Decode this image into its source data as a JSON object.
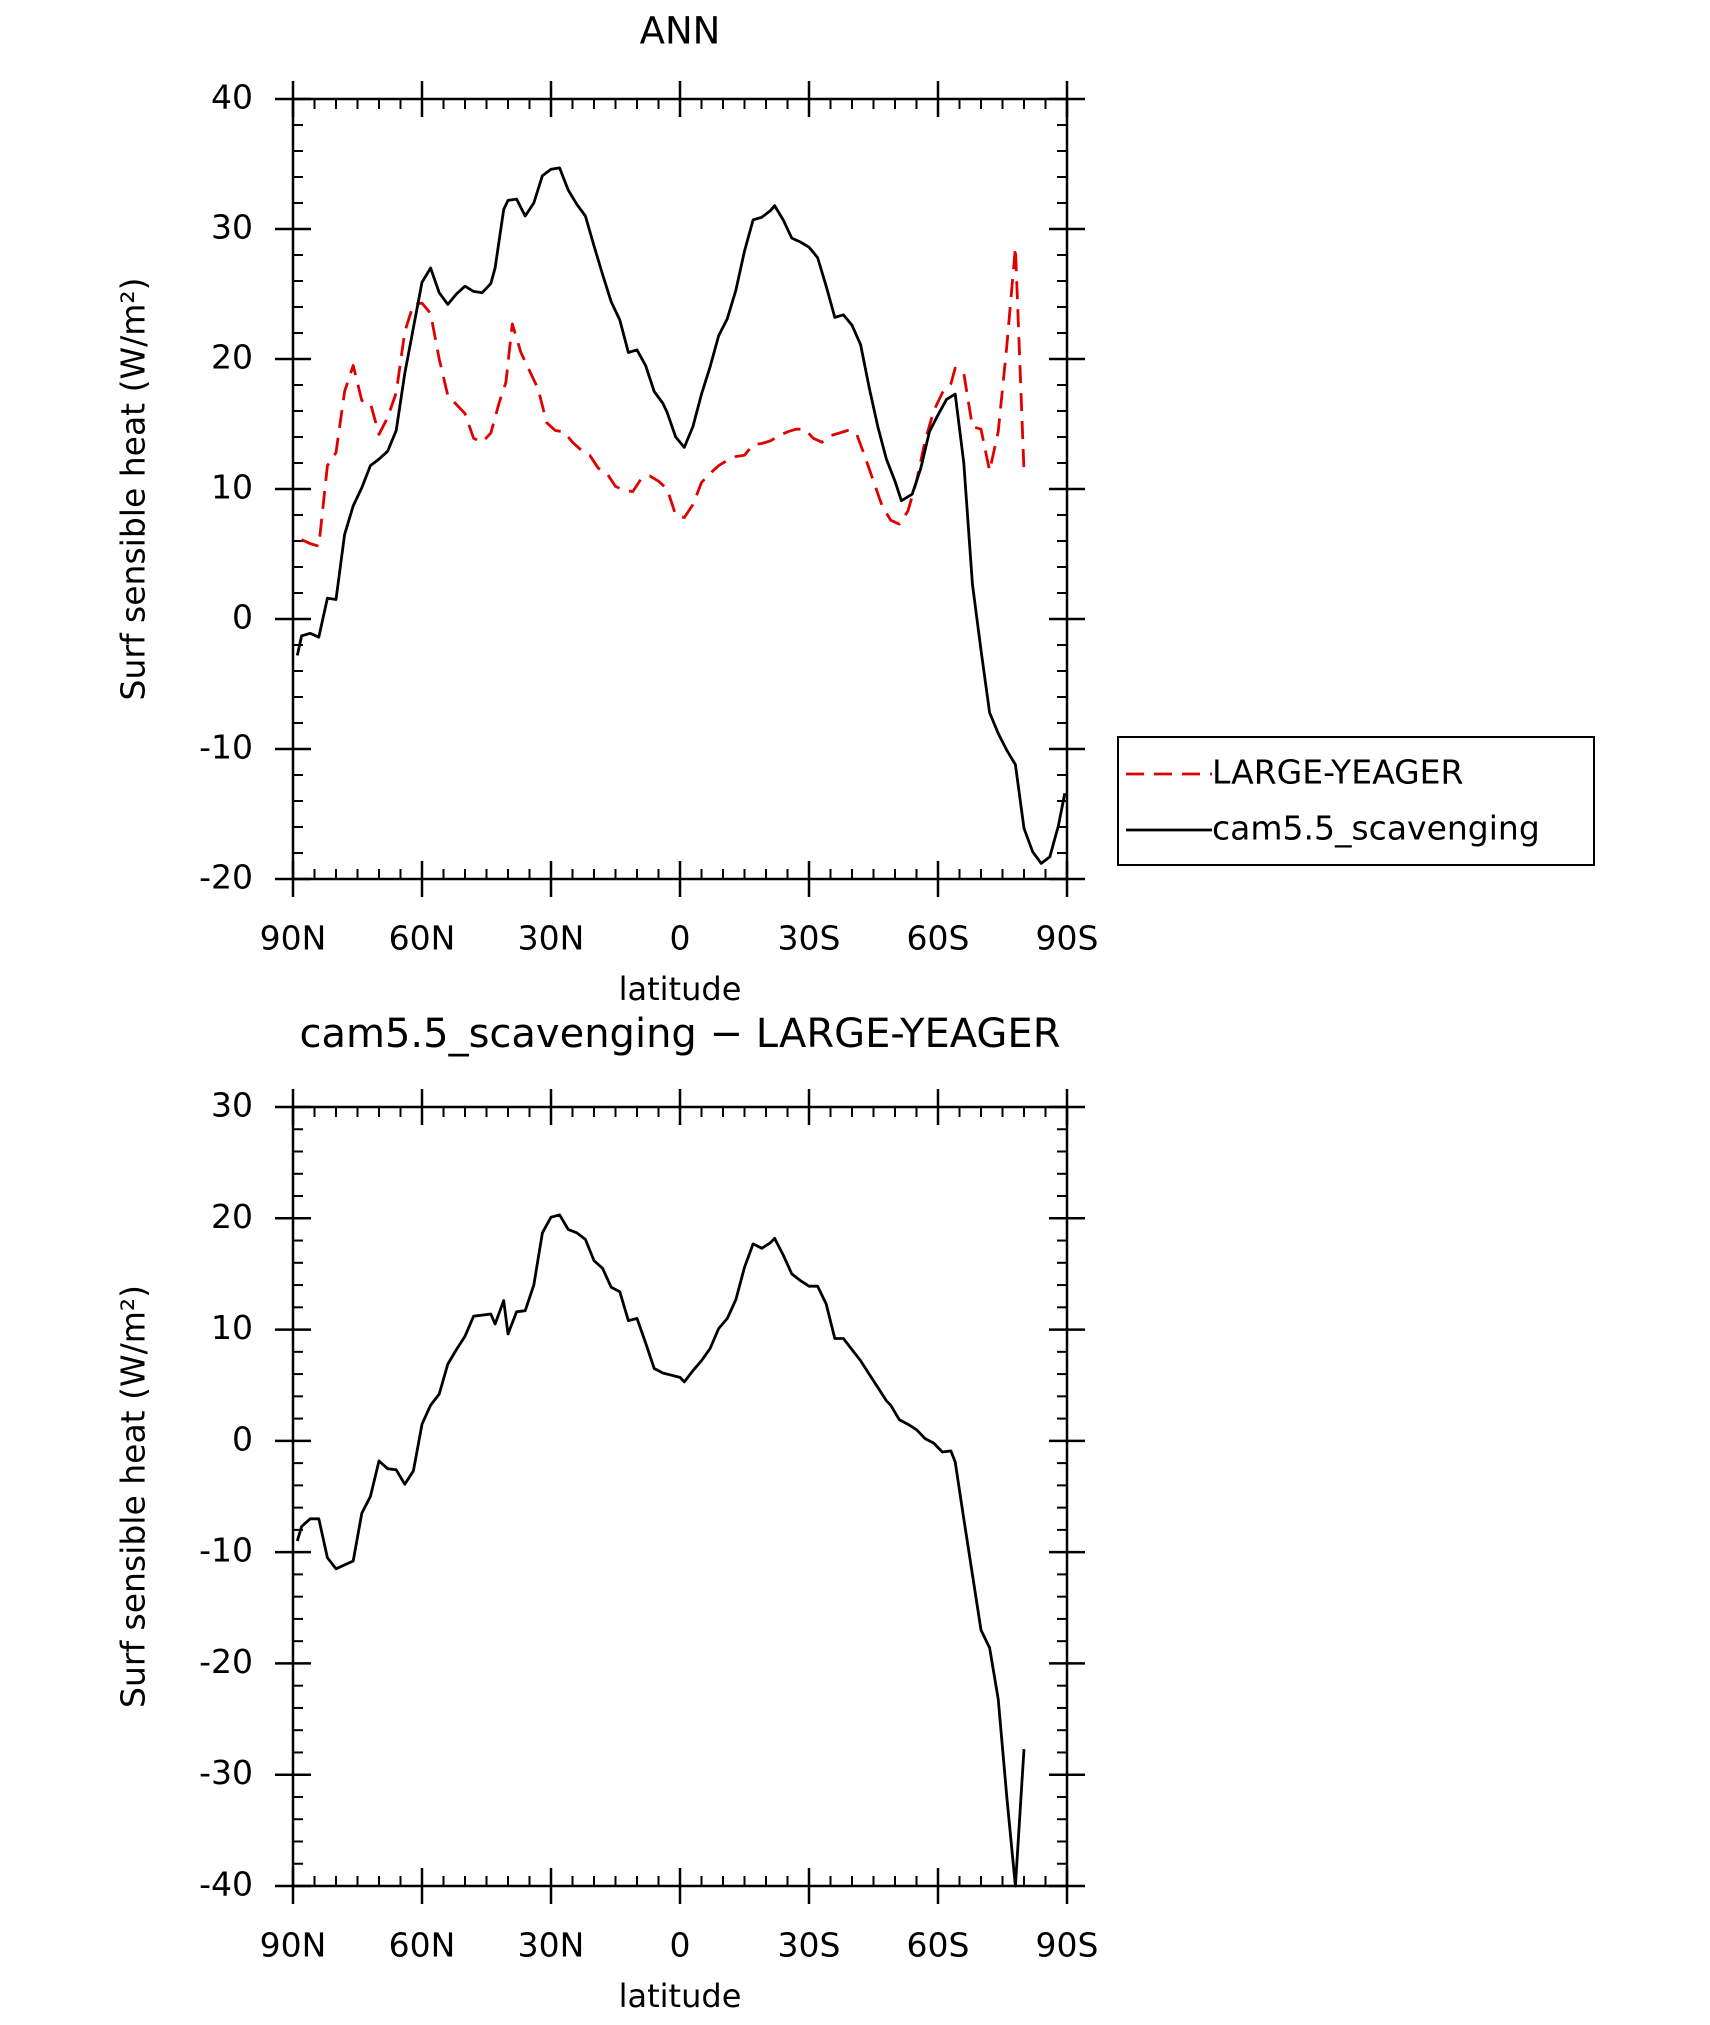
{
  "chart_data": [
    {
      "type": "line",
      "title": "ANN",
      "xlabel": "latitude",
      "ylabel": "Surf sensible heat (W/m²)",
      "xlim": [
        90,
        -90
      ],
      "ylim": [
        -20,
        40
      ],
      "xticks": [
        {
          "value": 90,
          "label": "90N"
        },
        {
          "value": 60,
          "label": "60N"
        },
        {
          "value": 30,
          "label": "30N"
        },
        0,
        {
          "value": -30,
          "label": "30S"
        },
        {
          "value": -60,
          "label": "60S"
        },
        {
          "value": -90,
          "label": "90S"
        }
      ],
      "yticks": [
        -20,
        -10,
        0,
        10,
        20,
        30,
        40
      ],
      "legend": "right",
      "series": [
        {
          "name": "LARGE-YEAGER",
          "color": "#e00000",
          "line_style": "dashed",
          "x": [
            88,
            86,
            84,
            82,
            80,
            78,
            76,
            74,
            72,
            70,
            68,
            66,
            64,
            62,
            60,
            58,
            56,
            54,
            52,
            50,
            48,
            46,
            44,
            42,
            40.5,
            39,
            37,
            35,
            33,
            31,
            29,
            27,
            25,
            23,
            21,
            19,
            17,
            15,
            13,
            11,
            9,
            7,
            5,
            3,
            1,
            -1,
            -3,
            -5,
            -7,
            -9,
            -11,
            -13,
            -15,
            -17,
            -19,
            -21,
            -23,
            -25,
            -27,
            -29,
            -31,
            -33,
            -35,
            -37,
            -39,
            -41,
            -43,
            -45,
            -47,
            -49,
            -51,
            -53,
            -55,
            -57,
            -59,
            -61,
            -63,
            -64,
            -66,
            -68,
            -70,
            -72,
            -74,
            -76,
            -78,
            -80
          ],
          "values": [
            6.1,
            5.8,
            5.6,
            11.8,
            12.8,
            17.5,
            19.5,
            16.8,
            16.6,
            14.2,
            15.5,
            17.4,
            22.1,
            24.2,
            24.3,
            23.5,
            20.0,
            17.2,
            16.5,
            15.8,
            13.9,
            13.6,
            14.3,
            16.7,
            18.2,
            22.7,
            20.5,
            19.1,
            17.7,
            15.1,
            14.5,
            14.4,
            13.6,
            13.0,
            12.6,
            11.6,
            11.2,
            10.2,
            9.9,
            9.8,
            10.8,
            11.0,
            10.6,
            10.0,
            8.0,
            7.8,
            8.8,
            10.5,
            11.2,
            11.8,
            12.2,
            12.5,
            12.6,
            13.4,
            13.5,
            13.7,
            14.1,
            14.4,
            14.6,
            14.6,
            13.9,
            13.6,
            14.1,
            14.3,
            14.5,
            14.3,
            12.5,
            10.6,
            8.7,
            7.6,
            7.3,
            8.3,
            10.6,
            13.7,
            16.0,
            17.4,
            18.1,
            19.3,
            18.9,
            14.8,
            14.6,
            11.4,
            14.4,
            21.0,
            28.6,
            11.4
          ]
        },
        {
          "name": "cam5.5_scavenging",
          "color": "#000000",
          "line_style": "solid",
          "x": [
            89,
            88,
            86,
            84,
            82,
            80,
            78,
            76,
            74,
            72,
            70,
            68,
            66,
            64,
            62,
            60,
            58,
            56,
            54,
            52,
            50,
            48,
            46,
            44,
            43,
            41,
            40,
            38,
            36,
            34,
            32,
            30,
            28,
            26,
            24,
            22,
            20,
            18,
            16,
            14,
            12,
            10,
            8,
            6,
            4,
            3,
            1,
            -1,
            -3,
            -5,
            -7,
            -9,
            -11,
            -13,
            -15,
            -17,
            -19,
            -21,
            -22,
            -24,
            -26,
            -28,
            -30,
            -32,
            -34,
            -36,
            -38,
            -40,
            -42,
            -44,
            -46,
            -48,
            -50,
            -51.5,
            -54,
            -56,
            -58,
            -60,
            -62,
            -64,
            -66,
            -68,
            -70,
            -72,
            -74,
            -76,
            -78,
            -80,
            -82,
            -84,
            -86,
            -88,
            -89.5
          ],
          "values": [
            -2.8,
            -1.3,
            -1.1,
            -1.4,
            1.6,
            1.5,
            6.5,
            8.7,
            10.1,
            11.8,
            12.3,
            12.9,
            14.5,
            18.9,
            22.4,
            25.9,
            27.0,
            25.1,
            24.2,
            25.0,
            25.6,
            25.2,
            25.1,
            25.8,
            27.0,
            31.5,
            32.2,
            32.3,
            31.0,
            32.0,
            34.1,
            34.6,
            34.7,
            33.0,
            31.9,
            31.0,
            28.7,
            26.5,
            24.4,
            23.0,
            20.5,
            20.7,
            19.5,
            17.5,
            16.6,
            15.9,
            14.0,
            13.2,
            14.8,
            17.3,
            19.4,
            21.8,
            23.1,
            25.3,
            28.3,
            30.7,
            30.9,
            31.4,
            31.8,
            30.7,
            29.3,
            29.0,
            28.6,
            27.8,
            25.6,
            23.2,
            23.4,
            22.6,
            21.1,
            17.8,
            14.8,
            12.3,
            10.6,
            9.1,
            9.6,
            11.6,
            14.4,
            15.7,
            16.9,
            17.3,
            12.0,
            2.7,
            -2.4,
            -7.2,
            -8.8,
            -10.1,
            -11.2,
            -16.1,
            -17.9,
            -18.8,
            -18.3,
            -15.9,
            -13.4
          ]
        }
      ]
    },
    {
      "type": "line",
      "title": "cam5.5_scavenging − LARGE-YEAGER",
      "xlabel": "latitude",
      "ylabel": "Surf sensible heat (W/m²)",
      "xlim": [
        90,
        -90
      ],
      "ylim": [
        -40,
        30
      ],
      "xticks": [
        {
          "value": 90,
          "label": "90N"
        },
        {
          "value": 60,
          "label": "60N"
        },
        {
          "value": 30,
          "label": "30N"
        },
        0,
        {
          "value": -30,
          "label": "30S"
        },
        {
          "value": -60,
          "label": "60S"
        },
        {
          "value": -90,
          "label": "90S"
        }
      ],
      "yticks": [
        -40,
        -30,
        -20,
        -10,
        0,
        10,
        20,
        30
      ],
      "series": [
        {
          "color": "#000000",
          "line_style": "solid",
          "x": [
            89,
            88,
            86,
            84,
            82,
            80,
            76,
            74,
            72,
            70,
            68,
            66,
            64,
            62,
            60,
            58,
            56,
            54,
            52,
            50,
            48,
            46,
            44,
            43,
            41,
            40,
            38,
            36,
            34,
            32,
            30,
            28,
            26,
            24,
            22,
            20,
            18,
            16,
            14,
            12,
            10,
            8,
            6,
            4,
            2,
            0,
            -1,
            -3,
            -5,
            -7,
            -9,
            -11,
            -13,
            -15,
            -17,
            -19,
            -21,
            -22,
            -24,
            -26,
            -28,
            -30,
            -32,
            -34,
            -36,
            -38,
            -40,
            -42,
            -44,
            -46,
            -48,
            -49,
            -51,
            -53,
            -55,
            -57,
            -59,
            -61,
            -63,
            -64,
            -66,
            -68,
            -70,
            -72,
            -74,
            -76,
            -78,
            -80
          ],
          "values": [
            -9.0,
            -7.7,
            -7.0,
            -7.0,
            -10.5,
            -11.5,
            -10.8,
            -6.5,
            -5.0,
            -1.8,
            -2.5,
            -2.6,
            -3.9,
            -2.7,
            1.5,
            3.2,
            4.2,
            6.9,
            8.2,
            9.4,
            11.2,
            11.3,
            11.4,
            10.5,
            12.6,
            9.6,
            11.6,
            11.7,
            14.0,
            18.7,
            20.1,
            20.3,
            19.0,
            18.7,
            18.1,
            16.2,
            15.5,
            13.8,
            13.4,
            10.8,
            11.0,
            8.8,
            6.5,
            6.1,
            5.9,
            5.7,
            5.3,
            6.3,
            7.2,
            8.3,
            10.1,
            11.0,
            12.7,
            15.6,
            17.7,
            17.3,
            17.8,
            18.2,
            16.7,
            15.0,
            14.4,
            13.9,
            13.9,
            12.3,
            9.2,
            9.2,
            8.2,
            7.2,
            6.0,
            4.8,
            3.6,
            3.2,
            1.9,
            1.5,
            1.0,
            0.2,
            -0.2,
            -1.0,
            -0.9,
            -1.9,
            -7.0,
            -12.0,
            -17.0,
            -18.6,
            -23.2,
            -32.0,
            -40.0,
            -27.7
          ]
        }
      ]
    }
  ]
}
